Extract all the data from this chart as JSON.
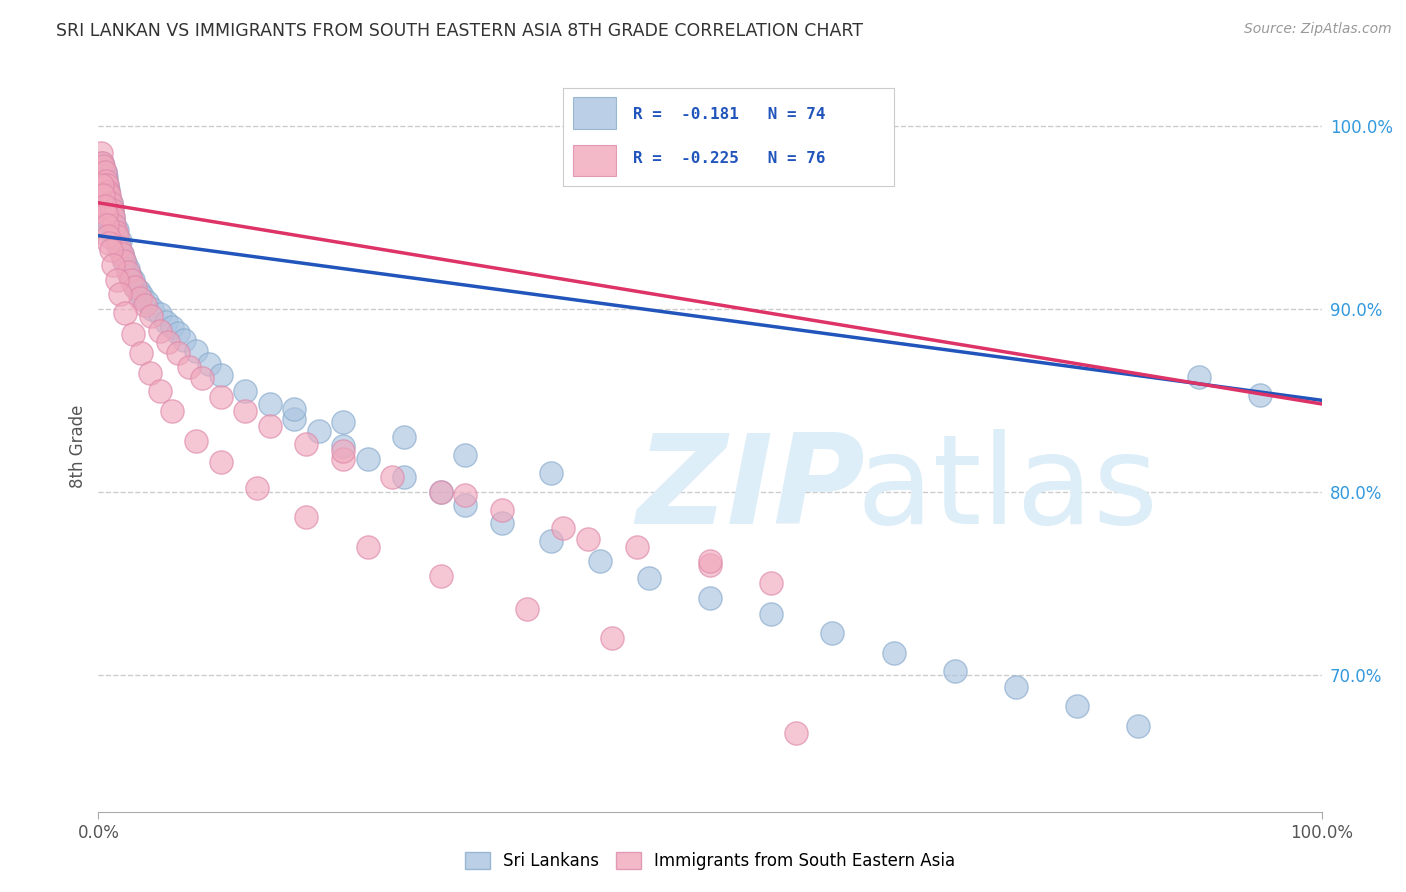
{
  "title": "SRI LANKAN VS IMMIGRANTS FROM SOUTH EASTERN ASIA 8TH GRADE CORRELATION CHART",
  "source": "Source: ZipAtlas.com",
  "ylabel": "8th Grade",
  "ytick_labels_right": [
    "100.0%",
    "90.0%",
    "80.0%",
    "70.0%"
  ],
  "ytick_vals_right": [
    1.0,
    0.9,
    0.8,
    0.7
  ],
  "xlim": [
    0.0,
    1.0
  ],
  "ylim": [
    0.625,
    1.025
  ],
  "legend_r1": "R =  -0.181   N = 74",
  "legend_r2": "R =  -0.225   N = 76",
  "legend_label1": "Sri Lankans",
  "legend_label2": "Immigrants from South Eastern Asia",
  "blue_color": "#aac4e0",
  "pink_color": "#f0a8bc",
  "line_blue": "#2255bb",
  "line_pink": "#dd3366",
  "title_color": "#333333",
  "source_color": "#999999",
  "grid_color": "#cccccc",
  "blue_line_intercept": 0.94,
  "blue_line_slope": -0.09,
  "pink_line_intercept": 0.958,
  "pink_line_slope": -0.11,
  "blue_x": [
    0.003,
    0.004,
    0.004,
    0.005,
    0.005,
    0.006,
    0.006,
    0.006,
    0.007,
    0.007,
    0.007,
    0.008,
    0.008,
    0.009,
    0.009,
    0.01,
    0.01,
    0.011,
    0.011,
    0.012,
    0.012,
    0.013,
    0.014,
    0.015,
    0.016,
    0.017,
    0.018,
    0.019,
    0.02,
    0.022,
    0.024,
    0.026,
    0.028,
    0.03,
    0.033,
    0.036,
    0.04,
    0.044,
    0.05,
    0.055,
    0.06,
    0.065,
    0.07,
    0.08,
    0.09,
    0.1,
    0.12,
    0.14,
    0.16,
    0.18,
    0.2,
    0.22,
    0.25,
    0.28,
    0.3,
    0.33,
    0.37,
    0.41,
    0.45,
    0.5,
    0.55,
    0.6,
    0.65,
    0.7,
    0.75,
    0.8,
    0.85,
    0.9,
    0.95,
    0.16,
    0.2,
    0.25,
    0.3,
    0.37
  ],
  "blue_y": [
    0.98,
    0.975,
    0.965,
    0.975,
    0.965,
    0.972,
    0.96,
    0.95,
    0.968,
    0.958,
    0.948,
    0.965,
    0.952,
    0.96,
    0.948,
    0.958,
    0.945,
    0.955,
    0.942,
    0.95,
    0.938,
    0.946,
    0.94,
    0.943,
    0.936,
    0.933,
    0.937,
    0.93,
    0.928,
    0.925,
    0.922,
    0.918,
    0.916,
    0.912,
    0.91,
    0.907,
    0.904,
    0.9,
    0.897,
    0.893,
    0.89,
    0.887,
    0.883,
    0.877,
    0.87,
    0.864,
    0.855,
    0.848,
    0.84,
    0.833,
    0.825,
    0.818,
    0.808,
    0.8,
    0.793,
    0.783,
    0.773,
    0.762,
    0.753,
    0.742,
    0.733,
    0.723,
    0.712,
    0.702,
    0.693,
    0.683,
    0.672,
    0.863,
    0.853,
    0.845,
    0.838,
    0.83,
    0.82,
    0.81
  ],
  "pink_x": [
    0.002,
    0.003,
    0.003,
    0.004,
    0.004,
    0.005,
    0.005,
    0.006,
    0.006,
    0.007,
    0.007,
    0.008,
    0.008,
    0.009,
    0.01,
    0.011,
    0.012,
    0.013,
    0.014,
    0.015,
    0.017,
    0.019,
    0.021,
    0.024,
    0.027,
    0.03,
    0.034,
    0.038,
    0.043,
    0.05,
    0.057,
    0.065,
    0.074,
    0.085,
    0.1,
    0.12,
    0.14,
    0.17,
    0.2,
    0.24,
    0.28,
    0.33,
    0.38,
    0.44,
    0.5,
    0.55,
    0.003,
    0.004,
    0.005,
    0.006,
    0.007,
    0.008,
    0.009,
    0.01,
    0.012,
    0.015,
    0.018,
    0.022,
    0.028,
    0.035,
    0.042,
    0.05,
    0.06,
    0.08,
    0.1,
    0.13,
    0.17,
    0.22,
    0.28,
    0.35,
    0.42,
    0.5,
    0.2,
    0.3,
    0.4,
    0.57
  ],
  "pink_y": [
    0.985,
    0.98,
    0.97,
    0.978,
    0.968,
    0.975,
    0.962,
    0.97,
    0.958,
    0.968,
    0.955,
    0.964,
    0.952,
    0.962,
    0.958,
    0.954,
    0.95,
    0.946,
    0.942,
    0.94,
    0.934,
    0.93,
    0.926,
    0.92,
    0.916,
    0.912,
    0.906,
    0.902,
    0.896,
    0.888,
    0.882,
    0.876,
    0.868,
    0.862,
    0.852,
    0.844,
    0.836,
    0.826,
    0.818,
    0.808,
    0.8,
    0.79,
    0.78,
    0.77,
    0.76,
    0.75,
    0.968,
    0.962,
    0.956,
    0.952,
    0.946,
    0.94,
    0.936,
    0.932,
    0.924,
    0.916,
    0.908,
    0.898,
    0.886,
    0.876,
    0.865,
    0.855,
    0.844,
    0.828,
    0.816,
    0.802,
    0.786,
    0.77,
    0.754,
    0.736,
    0.72,
    0.762,
    0.822,
    0.798,
    0.774,
    0.668
  ]
}
